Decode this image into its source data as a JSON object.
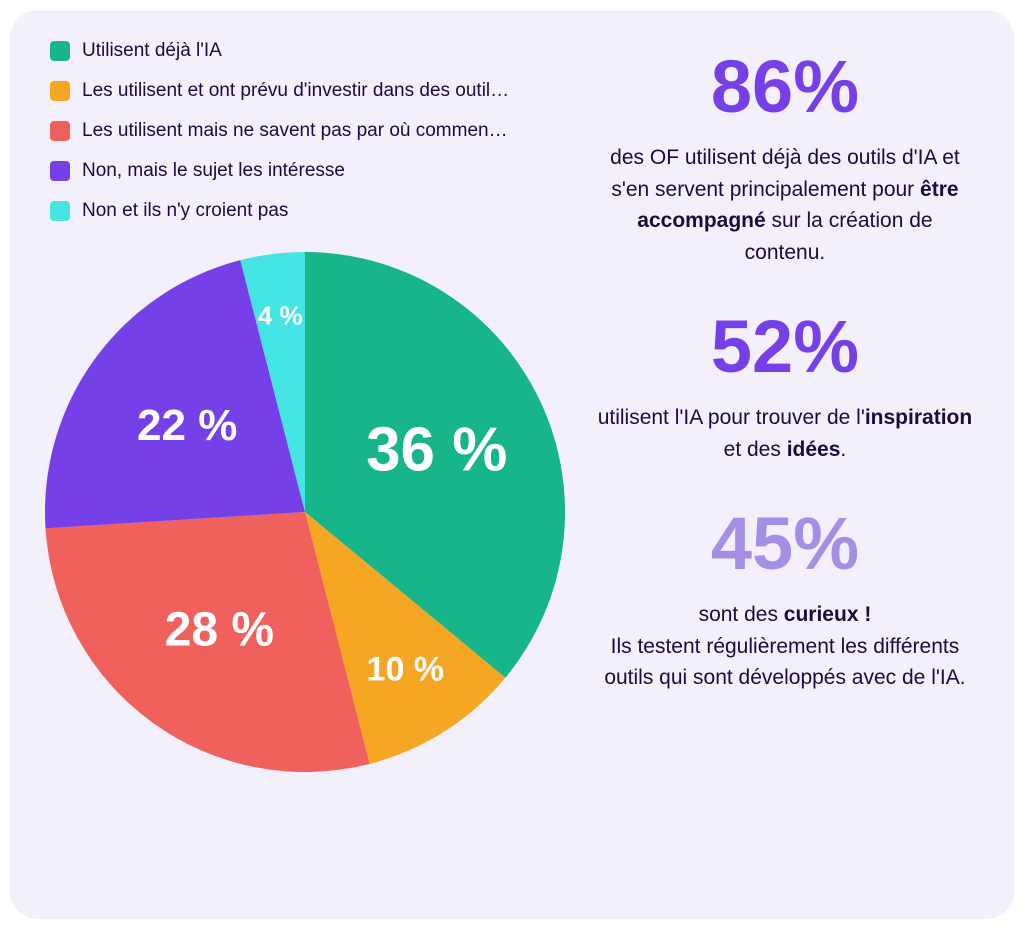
{
  "card": {
    "background_color": "#f3effb",
    "border_radius": 28
  },
  "legend": {
    "text_color": "#1a0c3d",
    "font_size": 19,
    "swatch_size": 20,
    "swatch_radius": 4,
    "items": [
      {
        "label": "Utilisent déjà l'IA",
        "color": "#17b58a"
      },
      {
        "label": "Les utilisent et ont prévu d'investir dans des outil…",
        "color": "#f5a623"
      },
      {
        "label": "Les utilisent mais ne savent pas par où commen…",
        "color": "#f0615e"
      },
      {
        "label": "Non, mais le sujet les intéresse",
        "color": "#7540e8"
      },
      {
        "label": "Non et ils n'y croient pas",
        "color": "#45e5e5"
      }
    ]
  },
  "pie": {
    "type": "pie",
    "diameter": 520,
    "start_angle_deg": 0,
    "direction": "clockwise",
    "slices": [
      {
        "value": 36,
        "label": "36 %",
        "color": "#17b58a",
        "label_fontsize": 62,
        "label_r": 0.56
      },
      {
        "value": 10,
        "label": "10 %",
        "color": "#f5a623",
        "label_fontsize": 34,
        "label_r": 0.72
      },
      {
        "value": 28,
        "label": "28 %",
        "color": "#f0615e",
        "label_fontsize": 48,
        "label_r": 0.56
      },
      {
        "value": 22,
        "label": "22 %",
        "color": "#7540e8",
        "label_fontsize": 44,
        "label_r": 0.56
      },
      {
        "value": 4,
        "label": "4 %",
        "color": "#45e5e5",
        "label_fontsize": 26,
        "label_r": 0.76
      }
    ],
    "label_color": "#ffffff",
    "label_weight": 700
  },
  "stats": [
    {
      "value": "86%",
      "value_color": "#7540e8",
      "value_fontsize": 74,
      "desc_html": "des OF utilisent déjà des outils d'IA et s'en servent principalement pour <b>être accompagné</b> sur la création de contenu.",
      "desc_color": "#1a0c3d",
      "desc_fontsize": 21
    },
    {
      "value": "52%",
      "value_color": "#7540e8",
      "value_fontsize": 74,
      "desc_html": "utilisent l'IA pour trouver de l'<b>inspiration</b> et des <b>idées</b>.",
      "desc_color": "#1a0c3d",
      "desc_fontsize": 21
    },
    {
      "value": "45%",
      "value_color": "#a58fe6",
      "value_fontsize": 74,
      "desc_html": "sont des <b>curieux !</b><br>Ils testent régulièrement les différents outils qui sont développés avec de l'IA.",
      "desc_color": "#1a0c3d",
      "desc_fontsize": 21
    }
  ]
}
